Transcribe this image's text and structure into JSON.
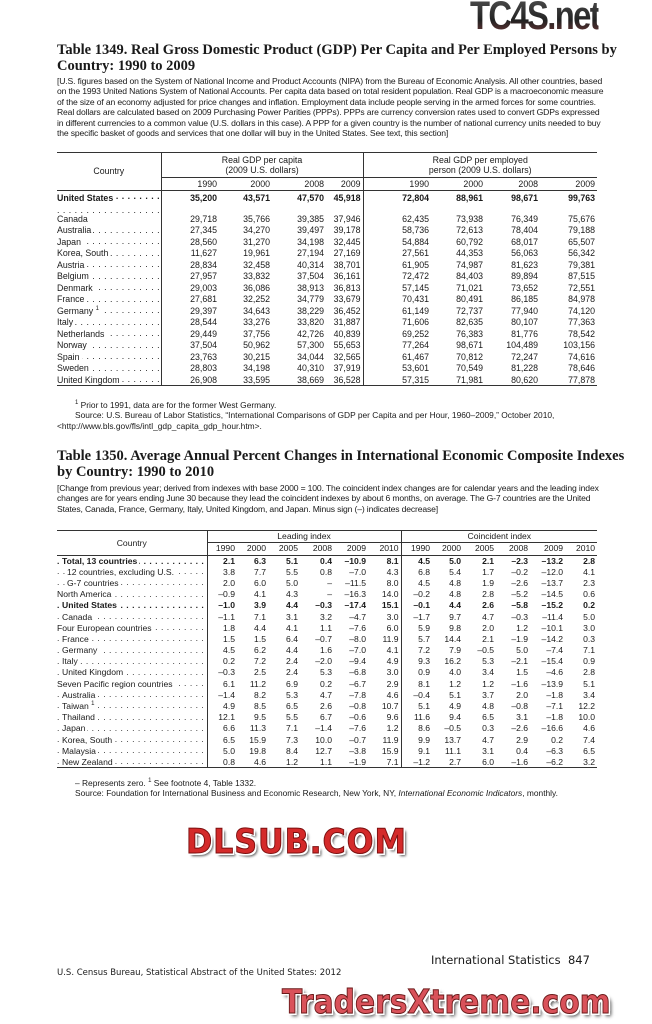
{
  "watermarks": {
    "top": "TC4S.net",
    "middle": "DLSUB.COM",
    "bottom": "TradersXtreme.com"
  },
  "t1349": {
    "title": "Table 1349. Real Gross Domestic Product (GDP) Per Capita and Per Employed Persons by Country: 1990 to 2009",
    "intro": "[U.S. figures based on the System of National Income and Product Accounts (NIPA) from the Bureau of Economic Analysis. All other countries, based on the 1993 United Nations System of National Accounts. Per capita data based on total resident population. Real GDP is a macroeconomic measure of the size of an economy adjusted for price changes and inflation. Employment data include people serving in the armed forces for some countries. Real dollars are calculated based on 2009 Purchasing Power Parities (PPPs). PPPs are currency conversion rates used to convert GDPs expressed in different currencies to a common value (U.S. dollars in this case). A PPP for a given country is the number of national currency units needed to buy the specific basket of goods and services that one dollar will buy in the United States. See text, this section]",
    "country_header": "Country",
    "group1": "Real GDP per capita (2009 U.S. dollars)",
    "group2": "Real GDP per employed person (2009 U.S. dollars)",
    "years": [
      "1990",
      "2000",
      "2008",
      "2009",
      "1990",
      "2000",
      "2008",
      "2009"
    ],
    "rows": [
      {
        "label": "United States",
        "bold": true,
        "values": [
          "35,200",
          "43,571",
          "47,570",
          "45,918",
          "72,804",
          "88,961",
          "98,671",
          "99,763"
        ]
      },
      {
        "label": "Canada",
        "values": [
          "29,718",
          "35,766",
          "39,385",
          "37,946",
          "62,435",
          "73,938",
          "76,349",
          "75,676"
        ]
      },
      {
        "label": "Australia",
        "values": [
          "27,345",
          "34,270",
          "39,497",
          "39,178",
          "58,736",
          "72,613",
          "78,404",
          "79,188"
        ]
      },
      {
        "label": "Japan",
        "values": [
          "28,560",
          "31,270",
          "34,198",
          "32,445",
          "54,884",
          "60,792",
          "68,017",
          "65,507"
        ]
      },
      {
        "label": "Korea, South",
        "values": [
          "11,627",
          "19,961",
          "27,194",
          "27,169",
          "27,561",
          "44,353",
          "56,063",
          "56,342"
        ]
      },
      {
        "label": "Austria",
        "values": [
          "28,834",
          "32,458",
          "40,314",
          "38,701",
          "61,905",
          "74,987",
          "81,623",
          "79,381"
        ]
      },
      {
        "label": "Belgium",
        "values": [
          "27,957",
          "33,832",
          "37,504",
          "36,161",
          "72,472",
          "84,403",
          "89,894",
          "87,515"
        ]
      },
      {
        "label": "Denmark",
        "values": [
          "29,003",
          "36,086",
          "38,913",
          "36,813",
          "57,145",
          "71,021",
          "73,652",
          "72,551"
        ]
      },
      {
        "label": "France",
        "values": [
          "27,681",
          "32,252",
          "34,779",
          "33,679",
          "70,431",
          "80,491",
          "86,185",
          "84,978"
        ]
      },
      {
        "label": "Germany",
        "note": "1",
        "values": [
          "29,397",
          "34,643",
          "38,229",
          "36,452",
          "61,149",
          "72,737",
          "77,940",
          "74,120"
        ]
      },
      {
        "label": "Italy",
        "values": [
          "28,544",
          "33,276",
          "33,820",
          "31,887",
          "71,606",
          "82,635",
          "80,107",
          "77,363"
        ]
      },
      {
        "label": "Netherlands",
        "values": [
          "29,449",
          "37,756",
          "42,726",
          "40,839",
          "69,252",
          "76,383",
          "81,776",
          "78,542"
        ]
      },
      {
        "label": "Norway",
        "values": [
          "37,504",
          "50,962",
          "57,300",
          "55,653",
          "77,264",
          "98,671",
          "104,489",
          "103,156"
        ]
      },
      {
        "label": "Spain",
        "values": [
          "23,763",
          "30,215",
          "34,044",
          "32,565",
          "61,467",
          "70,812",
          "72,247",
          "74,616"
        ]
      },
      {
        "label": "Sweden",
        "values": [
          "28,803",
          "34,198",
          "40,310",
          "37,919",
          "53,601",
          "70,549",
          "81,228",
          "78,646"
        ]
      },
      {
        "label": "United Kingdom",
        "values": [
          "26,908",
          "33,595",
          "38,669",
          "36,528",
          "57,315",
          "71,981",
          "80,620",
          "77,878"
        ]
      }
    ],
    "footnote_mark": "1",
    "footnote": "Prior to 1991, data are for the former West Germany.",
    "source": "Source: U.S. Bureau of Labor Statistics, “International Comparisons of GDP per Capita and per Hour, 1960–2009,” October 2010, <http://www.bls.gov/fls/intl_gdp_capita_gdp_hour.htm>."
  },
  "t1350": {
    "title": "Table 1350. Average Annual Percent Changes in International Economic Composite Indexes by Country: 1990 to 2010",
    "intro": "[Change from previous year; derived from indexes with base 2000 = 100. The coincident index changes are for calendar years and the leading index changes are for years ending June 30 because they lead the coincident indexes by about 6 months, on average. The G-7 countries are the United States, Canada, France, Germany, Italy, United Kingdom, and Japan. Minus sign (–) indicates decrease]",
    "country_header": "Country",
    "group1": "Leading index",
    "group2": "Coincident index",
    "years": [
      "1990",
      "2000",
      "2005",
      "2008",
      "2009",
      "2010",
      "1990",
      "2000",
      "2005",
      "2008",
      "2009",
      "2010"
    ],
    "rows": [
      {
        "label": "Total, 13 countries",
        "indent": 1,
        "bold": true,
        "values": [
          "2.1",
          "6.3",
          "5.1",
          "0.4",
          "–10.9",
          "8.1",
          "4.5",
          "5.0",
          "2.1",
          "–2.3",
          "–13.2",
          "2.8"
        ]
      },
      {
        "label": "12 countries, excluding U.S.",
        "indent": 2,
        "values": [
          "3.8",
          "7.7",
          "5.5",
          "0.8",
          "–7.0",
          "4.3",
          "6.8",
          "5.4",
          "1.7",
          "–0.2",
          "–12.0",
          "4.1"
        ]
      },
      {
        "label": "G-7 countries",
        "indent": 2,
        "values": [
          "2.0",
          "6.0",
          "5.0",
          "–",
          "–11.5",
          "8.0",
          "4.5",
          "4.8",
          "1.9",
          "–2.6",
          "–13.7",
          "2.3"
        ]
      },
      {
        "label": "North America",
        "indent": 0,
        "values": [
          "–0.9",
          "4.1",
          "4.3",
          "–",
          "–16.3",
          "14.0",
          "–0.2",
          "4.8",
          "2.8",
          "–5.2",
          "–14.5",
          "0.6"
        ]
      },
      {
        "label": "United States",
        "indent": 1,
        "bold": true,
        "values": [
          "–1.0",
          "3.9",
          "4.4",
          "–0.3",
          "–17.4",
          "15.1",
          "–0.1",
          "4.4",
          "2.6",
          "–5.8",
          "–15.2",
          "0.2"
        ]
      },
      {
        "label": "Canada",
        "indent": 1,
        "values": [
          "–1.1",
          "7.1",
          "3.1",
          "3.2",
          "–4.7",
          "3.0",
          "–1.7",
          "9.7",
          "4.7",
          "–0.3",
          "–11.4",
          "5.0"
        ]
      },
      {
        "label": "Four European countries",
        "indent": 0,
        "values": [
          "1.8",
          "4.4",
          "4.1",
          "1.1",
          "–7.6",
          "6.0",
          "5.9",
          "9.8",
          "2.0",
          "1.2",
          "–10.1",
          "3.0"
        ]
      },
      {
        "label": "France",
        "indent": 1,
        "values": [
          "1.5",
          "1.5",
          "6.4",
          "–0.7",
          "–8.0",
          "11.9",
          "5.7",
          "14.4",
          "2.1",
          "–1.9",
          "–14.2",
          "0.3"
        ]
      },
      {
        "label": "Germany",
        "indent": 1,
        "values": [
          "4.5",
          "6.2",
          "4.4",
          "1.6",
          "–7.0",
          "4.1",
          "7.2",
          "7.9",
          "–0.5",
          "5.0",
          "–7.4",
          "7.1"
        ]
      },
      {
        "label": "Italy",
        "indent": 1,
        "values": [
          "0.2",
          "7.2",
          "2.4",
          "–2.0",
          "–9.4",
          "4.9",
          "9.3",
          "16.2",
          "5.3",
          "–2.1",
          "–15.4",
          "0.9"
        ]
      },
      {
        "label": "United Kingdom",
        "indent": 1,
        "values": [
          "–0.3",
          "2.5",
          "2.4",
          "5.3",
          "–6.8",
          "3.0",
          "0.9",
          "4.0",
          "3.4",
          "1.5",
          "–4.6",
          "2.8"
        ]
      },
      {
        "label": "Seven Pacific region countries",
        "indent": 0,
        "values": [
          "6.1",
          "11.2",
          "6.9",
          "0.2",
          "–6.7",
          "2.9",
          "8.1",
          "1.2",
          "1.2",
          "–1.6",
          "–13.9",
          "5.1"
        ]
      },
      {
        "label": "Australia",
        "indent": 1,
        "values": [
          "–1.4",
          "8.2",
          "5.3",
          "4.7",
          "–7.8",
          "4.6",
          "–0.4",
          "5.1",
          "3.7",
          "2.0",
          "–1.8",
          "3.4"
        ]
      },
      {
        "label": "Taiwan",
        "note": "1",
        "indent": 1,
        "values": [
          "4.9",
          "8.5",
          "6.5",
          "2.6",
          "–0.8",
          "10.7",
          "5.1",
          "4.9",
          "4.8",
          "–0.8",
          "–7.1",
          "12.2"
        ]
      },
      {
        "label": "Thailand",
        "indent": 1,
        "values": [
          "12.1",
          "9.5",
          "5.5",
          "6.7",
          "–0.6",
          "9.6",
          "11.6",
          "9.4",
          "6.5",
          "3.1",
          "–1.8",
          "10.0"
        ]
      },
      {
        "label": "Japan",
        "indent": 1,
        "values": [
          "6.6",
          "11.3",
          "7.1",
          "–1.4",
          "–7.6",
          "1.2",
          "8.6",
          "–0.5",
          "0.3",
          "–2.6",
          "–16.6",
          "4.6"
        ]
      },
      {
        "label": "Korea, South",
        "indent": 1,
        "values": [
          "6.5",
          "15.9",
          "7.3",
          "10.0",
          "–0.7",
          "11.9",
          "9.9",
          "13.7",
          "4.7",
          "2.9",
          "0.2",
          "7.4"
        ]
      },
      {
        "label": "Malaysia",
        "indent": 1,
        "values": [
          "5.0",
          "19.8",
          "8.4",
          "12.7",
          "–3.8",
          "15.9",
          "9.1",
          "11.1",
          "3.1",
          "0.4",
          "–6.3",
          "6.5"
        ]
      },
      {
        "label": "New Zealand",
        "indent": 1,
        "values": [
          "0.8",
          "4.6",
          "1.2",
          "1.1",
          "–1.9",
          "7.1",
          "–1.2",
          "2.7",
          "6.0",
          "–1.6",
          "–6.2",
          "3.2"
        ]
      }
    ],
    "footnote": "– Represents zero.",
    "footnote_mark": "1",
    "footnote2": "See footnote 4, Table 1332.",
    "source_prefix": "Source: Foundation for International Business and Economic Research, New York, NY,",
    "source_title": "International Economic Indicators",
    "source_suffix": ", monthly."
  },
  "footer": {
    "left": "U.S. Census Bureau, Statistical Abstract of the United States: 2012",
    "section": "International Statistics",
    "page": "847"
  }
}
